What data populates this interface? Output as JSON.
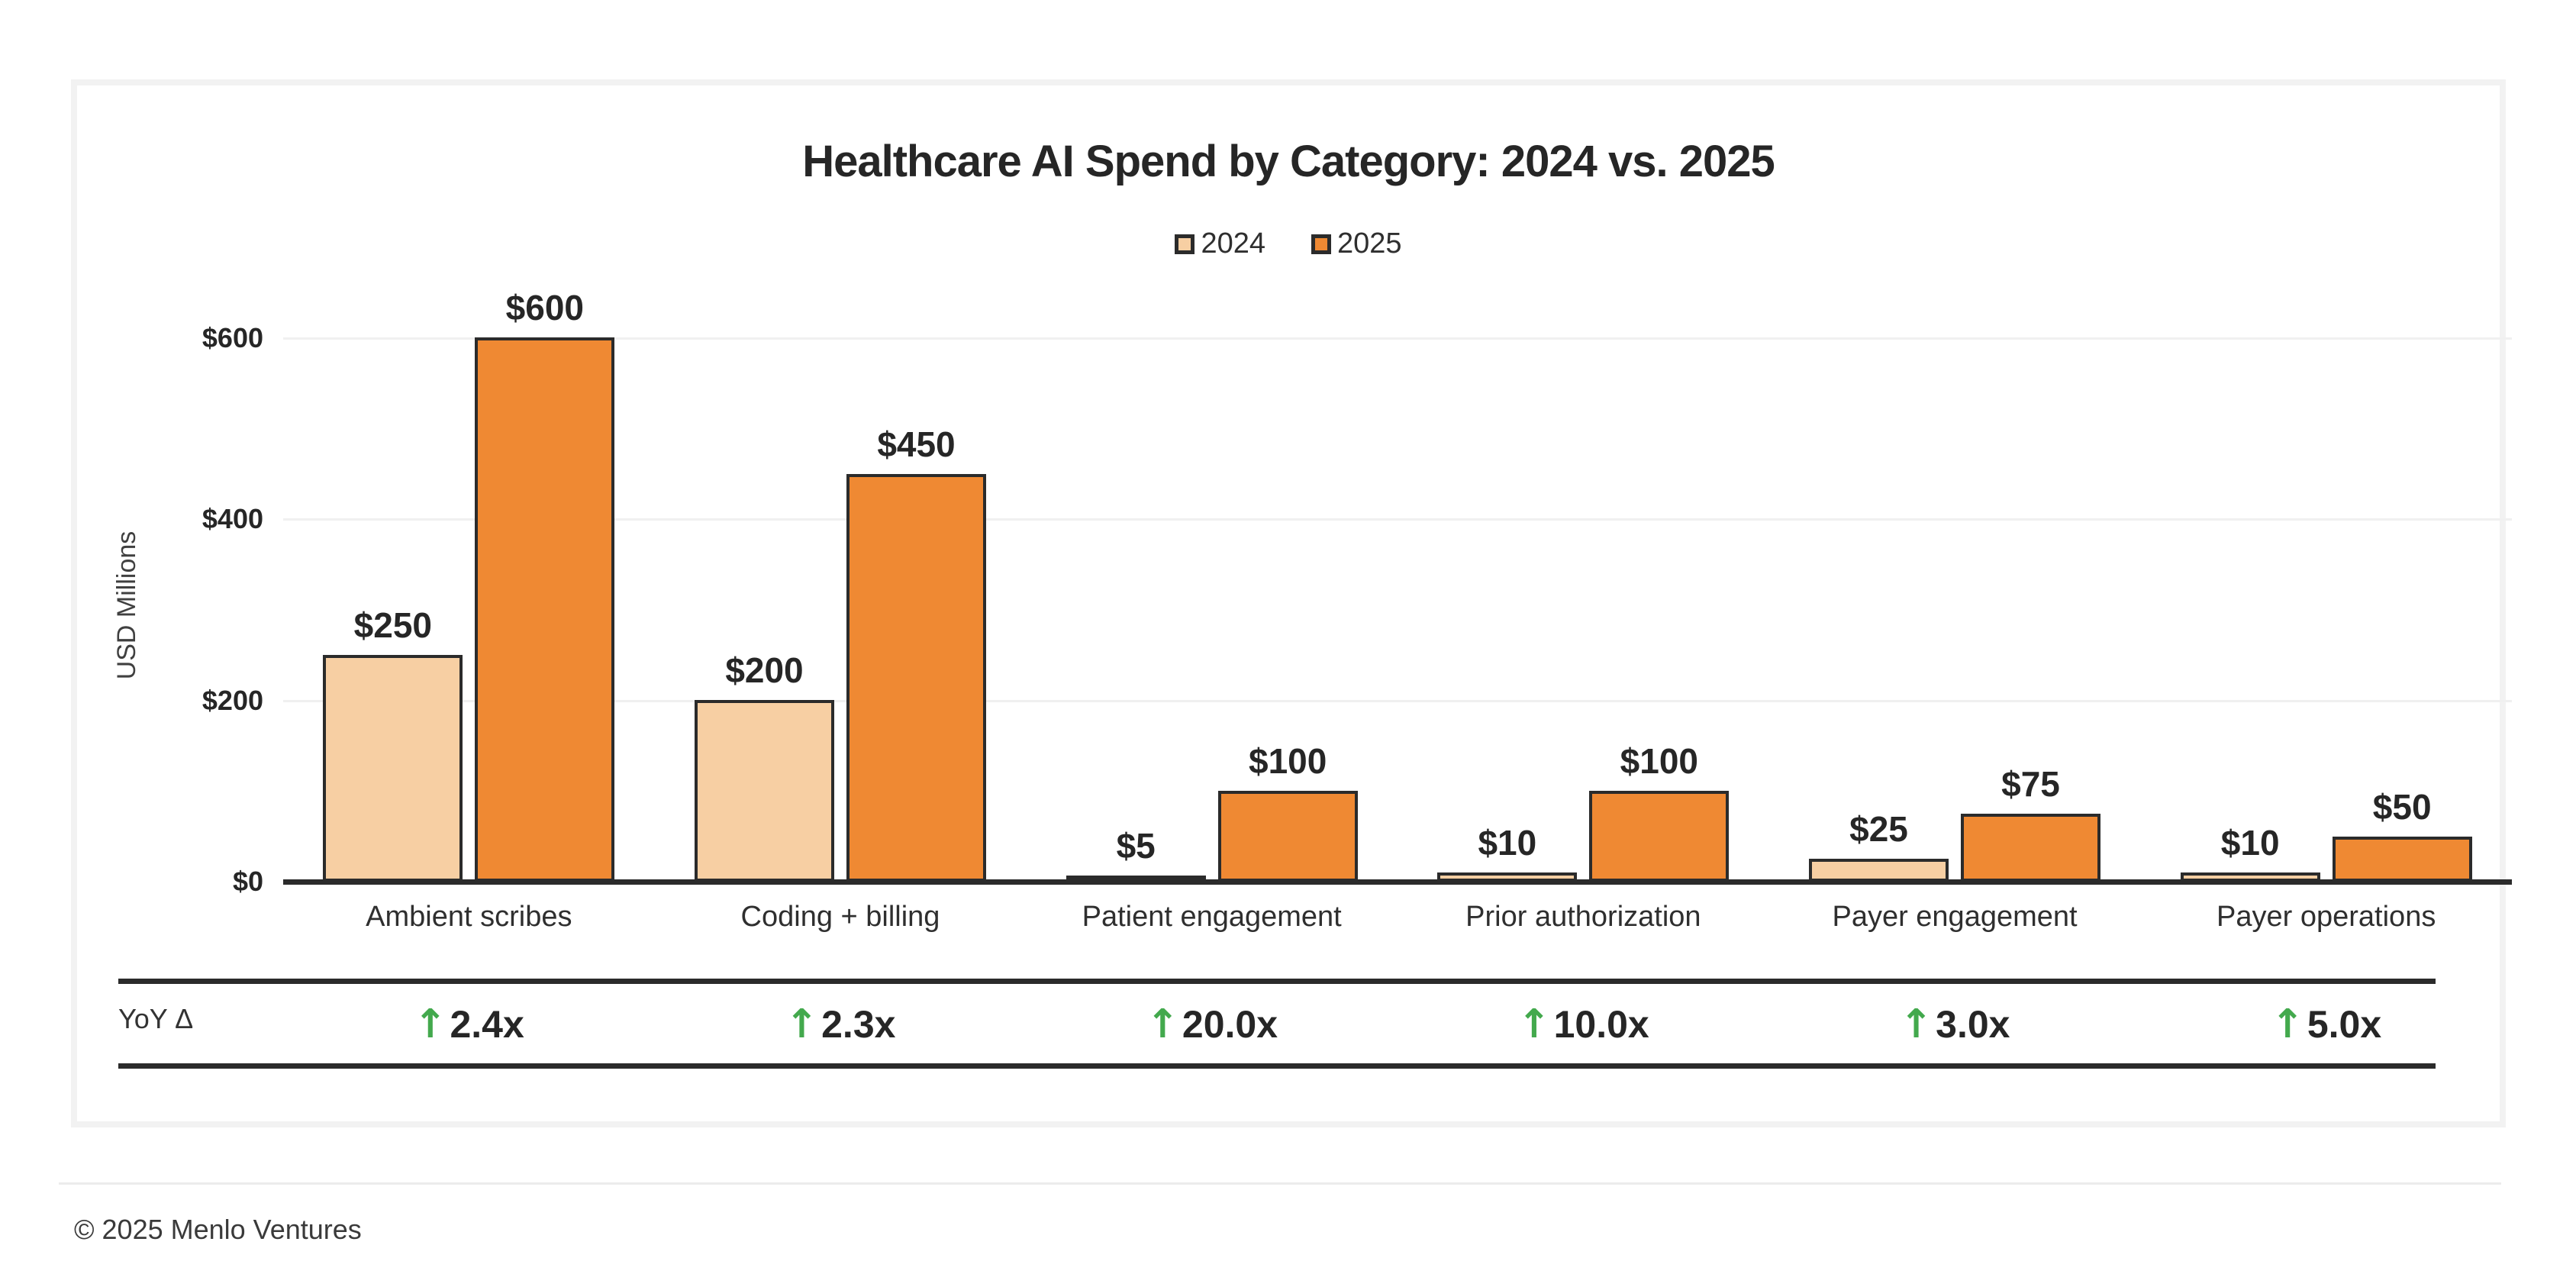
{
  "title": "Healthcare AI Spend by Category: 2024 vs. 2025",
  "legend": [
    {
      "label": "2024",
      "color": "#F7CFA3"
    },
    {
      "label": "2025",
      "color": "#EF8933"
    }
  ],
  "y_axis": {
    "label": "USD Millions",
    "ticks": [
      {
        "label": "$0",
        "value": 0
      },
      {
        "label": "$200",
        "value": 200
      },
      {
        "label": "$400",
        "value": 400
      },
      {
        "label": "$600",
        "value": 600
      }
    ]
  },
  "chart_data": {
    "type": "bar",
    "title": "Healthcare AI Spend by Category: 2024 vs. 2025",
    "xlabel": "",
    "ylabel": "USD Millions",
    "ylim": [
      0,
      650
    ],
    "grid": true,
    "legend_position": "top-center",
    "categories": [
      "Ambient scribes",
      "Coding + billing",
      "Patient engagement",
      "Prior authorization",
      "Payer engagement",
      "Payer operations"
    ],
    "series": [
      {
        "name": "2024",
        "color": "#F7CFA3",
        "border_color": "#2b2b2b",
        "values": [
          250,
          200,
          5,
          10,
          25,
          10
        ],
        "labels": [
          "$250",
          "$200",
          "$5",
          "$10",
          "$25",
          "$10"
        ]
      },
      {
        "name": "2025",
        "color": "#EF8933",
        "border_color": "#2b2b2b",
        "values": [
          600,
          450,
          100,
          100,
          75,
          50
        ],
        "labels": [
          "$600",
          "$450",
          "$100",
          "$100",
          "$75",
          "$50"
        ]
      }
    ],
    "yoy": {
      "row_label": "YoY Δ",
      "arrow": "↑",
      "arrow_color": "#43A94D",
      "values": [
        "2.4x",
        "2.3x",
        "20.0x",
        "10.0x",
        "3.0x",
        "5.0x"
      ]
    }
  },
  "footer": {
    "copyright": "© 2025 Menlo Ventures"
  }
}
